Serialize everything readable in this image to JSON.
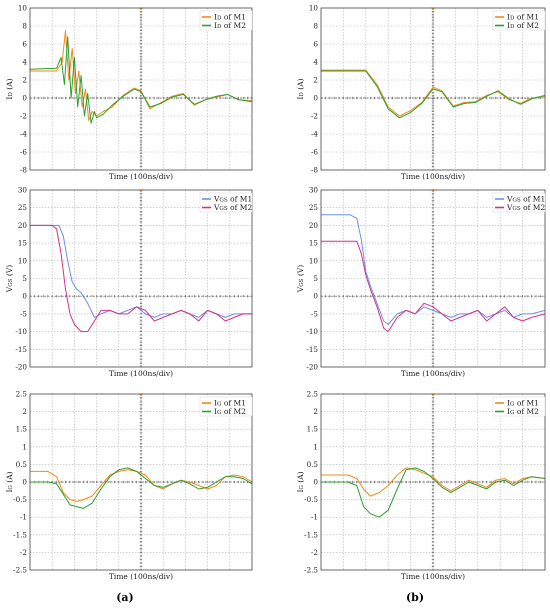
{
  "figure": {
    "captions": [
      "(a)",
      "(b)"
    ]
  },
  "colors": {
    "orange": "#f28a1c",
    "green": "#2f9e2f",
    "blue": "#6f8fe8",
    "magenta": "#d63384",
    "grid": "#b5b5b5",
    "frame": "#444444",
    "zero_line": "#555555"
  },
  "chart_data": [
    {
      "id": "a-id",
      "type": "line",
      "panel": "(a)",
      "xlabel": "Time (100ns/div)",
      "ylabel": "ID (A)",
      "ylim": [
        -8,
        10
      ],
      "yticks": [
        10,
        8,
        6,
        4,
        2,
        0,
        -2,
        -4,
        -6,
        -8
      ],
      "xlim": [
        0,
        10
      ],
      "grid": true,
      "legend": "top-right",
      "series": [
        {
          "name": "ID of M1",
          "color": "orange",
          "x": [
            0,
            1.2,
            1.45,
            1.6,
            1.75,
            1.9,
            2.05,
            2.2,
            2.35,
            2.5,
            2.65,
            2.8,
            3.0,
            3.3,
            3.7,
            4.2,
            4.7,
            5.0,
            5.4,
            5.9,
            6.4,
            6.9,
            7.4,
            7.9,
            8.4,
            8.9,
            9.4,
            10
          ],
          "y": [
            3.0,
            3.0,
            4.0,
            7.5,
            2.0,
            5.5,
            0.5,
            3.0,
            -1.0,
            1.0,
            -2.5,
            -1.5,
            -2.0,
            -1.5,
            -1.0,
            0.3,
            1.1,
            0.8,
            -1.2,
            -0.5,
            0.2,
            0.5,
            -0.8,
            -0.2,
            0.1,
            0.4,
            -0.2,
            -0.3
          ]
        },
        {
          "name": "ID of M2",
          "color": "green",
          "x": [
            0,
            1.2,
            1.4,
            1.55,
            1.7,
            1.85,
            2.0,
            2.15,
            2.3,
            2.45,
            2.6,
            2.75,
            2.9,
            3.0,
            3.3,
            3.7,
            4.2,
            4.7,
            5.0,
            5.4,
            5.9,
            6.4,
            6.9,
            7.4,
            7.9,
            8.4,
            8.9,
            9.4,
            10
          ],
          "y": [
            3.2,
            3.3,
            4.5,
            1.5,
            6.8,
            0.0,
            4.5,
            -1.0,
            2.5,
            -2.0,
            0.5,
            -2.8,
            -1.5,
            -2.2,
            -1.8,
            -0.8,
            0.2,
            1.0,
            0.7,
            -1.0,
            -0.6,
            0.1,
            0.4,
            -0.7,
            -0.2,
            0.2,
            0.4,
            -0.2,
            -0.4
          ]
        }
      ]
    },
    {
      "id": "b-id",
      "type": "line",
      "panel": "(b)",
      "xlabel": "Time (100ns/div)",
      "ylabel": "ID (A)",
      "ylim": [
        -8,
        10
      ],
      "yticks": [
        10,
        8,
        6,
        4,
        2,
        0,
        -2,
        -4,
        -6,
        -8
      ],
      "xlim": [
        0,
        10
      ],
      "grid": true,
      "legend": "top-right",
      "series": [
        {
          "name": "ID of M1",
          "color": "orange",
          "x": [
            0,
            1.5,
            2.0,
            2.5,
            3.0,
            3.5,
            4.0,
            4.5,
            5.0,
            5.4,
            5.9,
            6.4,
            6.9,
            7.4,
            7.9,
            8.4,
            8.9,
            9.4,
            10
          ],
          "y": [
            3.1,
            3.1,
            3.1,
            1.5,
            -1.0,
            -2.0,
            -1.4,
            -0.5,
            1.2,
            0.8,
            -0.9,
            -0.5,
            -0.4,
            0.3,
            0.7,
            -0.2,
            -0.6,
            0.0,
            0.2
          ]
        },
        {
          "name": "ID of M2",
          "color": "green",
          "x": [
            0,
            1.5,
            2.0,
            2.5,
            3.0,
            3.5,
            4.0,
            4.5,
            5.0,
            5.4,
            5.9,
            6.4,
            6.9,
            7.4,
            7.9,
            8.4,
            8.9,
            9.4,
            10
          ],
          "y": [
            3.0,
            3.0,
            3.0,
            1.3,
            -1.2,
            -2.2,
            -1.6,
            -0.6,
            1.0,
            0.7,
            -1.0,
            -0.6,
            -0.5,
            0.2,
            0.8,
            -0.1,
            -0.7,
            -0.1,
            0.3
          ]
        }
      ]
    },
    {
      "id": "a-vgs",
      "type": "line",
      "panel": "(a)",
      "xlabel": "Time (100ns/div)",
      "ylabel": "VGS (V)",
      "ylim": [
        -20,
        30
      ],
      "yticks": [
        30,
        25,
        20,
        15,
        10,
        5,
        0,
        -5,
        -10,
        -15,
        -20
      ],
      "xlim": [
        0,
        10
      ],
      "grid": true,
      "legend": "top-right",
      "series": [
        {
          "name": "VGS of M1",
          "color": "blue",
          "x": [
            0,
            1.0,
            1.3,
            1.5,
            1.7,
            1.9,
            2.1,
            2.3,
            2.6,
            2.9,
            3.2,
            3.6,
            4.0,
            4.4,
            4.8,
            5.2,
            5.6,
            6.0,
            6.4,
            6.8,
            7.2,
            7.6,
            8.0,
            8.4,
            8.8,
            9.2,
            9.6,
            10
          ],
          "y": [
            20,
            20,
            20,
            17,
            10,
            4,
            2,
            1,
            -2,
            -6,
            -5,
            -4,
            -5,
            -4,
            -3,
            -5,
            -6,
            -5,
            -5,
            -4,
            -5,
            -6,
            -4,
            -5,
            -6,
            -5,
            -5,
            -5
          ]
        },
        {
          "name": "VGS of M2",
          "color": "magenta",
          "x": [
            0,
            1.0,
            1.2,
            1.4,
            1.6,
            1.8,
            2.0,
            2.3,
            2.6,
            2.9,
            3.2,
            3.6,
            4.0,
            4.4,
            4.8,
            5.2,
            5.6,
            6.0,
            6.4,
            6.8,
            7.2,
            7.6,
            8.0,
            8.4,
            8.8,
            9.2,
            9.6,
            10
          ],
          "y": [
            20,
            20,
            19,
            12,
            2,
            -5,
            -8,
            -10,
            -10,
            -7,
            -4,
            -4,
            -5,
            -5,
            -3,
            -4,
            -7,
            -6,
            -5,
            -4,
            -5,
            -7,
            -4,
            -5,
            -7,
            -6,
            -5,
            -5
          ]
        }
      ]
    },
    {
      "id": "b-vgs",
      "type": "line",
      "panel": "(b)",
      "xlabel": "Time (100ns/div)",
      "ylabel": "VGS (V)",
      "ylim": [
        -20,
        30
      ],
      "yticks": [
        30,
        25,
        20,
        15,
        10,
        5,
        0,
        -5,
        -10,
        -15,
        -20
      ],
      "xlim": [
        0,
        10
      ],
      "grid": true,
      "legend": "top-right",
      "series": [
        {
          "name": "VGS of M1",
          "color": "blue",
          "x": [
            0,
            1.3,
            1.6,
            1.8,
            2.0,
            2.2,
            2.5,
            2.8,
            3.0,
            3.4,
            3.8,
            4.2,
            4.6,
            5.0,
            5.4,
            5.8,
            6.2,
            6.6,
            7.0,
            7.4,
            7.8,
            8.2,
            8.6,
            9.0,
            9.4,
            10
          ],
          "y": [
            23,
            23,
            22,
            16,
            7,
            3,
            -2,
            -7,
            -8,
            -5,
            -4,
            -5,
            -3,
            -4,
            -5,
            -6,
            -5,
            -5,
            -4,
            -6,
            -5,
            -4,
            -6,
            -5,
            -5,
            -4
          ]
        },
        {
          "name": "VGS of M2",
          "color": "magenta",
          "x": [
            0,
            1.3,
            1.6,
            1.8,
            2.0,
            2.2,
            2.5,
            2.8,
            3.0,
            3.4,
            3.8,
            4.2,
            4.6,
            5.0,
            5.4,
            5.8,
            6.2,
            6.6,
            7.0,
            7.4,
            7.8,
            8.2,
            8.6,
            9.0,
            9.4,
            10
          ],
          "y": [
            15.5,
            15.5,
            15.5,
            12,
            6,
            2,
            -3,
            -9,
            -10,
            -6,
            -4,
            -5,
            -2,
            -3,
            -5,
            -7,
            -6,
            -5,
            -4,
            -7,
            -5,
            -3,
            -6,
            -7,
            -6,
            -5
          ]
        }
      ]
    },
    {
      "id": "a-ig",
      "type": "line",
      "panel": "(a)",
      "xlabel": "Time (100ns/div)",
      "ylabel": "IG (A)",
      "ylim": [
        -2.5,
        2.5
      ],
      "yticks": [
        2.5,
        2,
        1.5,
        1,
        0.5,
        0,
        -0.5,
        -1,
        -1.5,
        -2,
        -2.5
      ],
      "xlim": [
        0,
        10
      ],
      "grid": true,
      "legend": "top-right",
      "series": [
        {
          "name": "IG of M1",
          "color": "orange",
          "x": [
            0,
            0.8,
            1.2,
            1.5,
            1.8,
            2.1,
            2.4,
            2.8,
            3.2,
            3.6,
            4.0,
            4.4,
            4.8,
            5.2,
            5.6,
            6.0,
            6.4,
            6.8,
            7.2,
            7.6,
            8.0,
            8.4,
            8.8,
            9.2,
            9.6,
            10
          ],
          "y": [
            0.3,
            0.3,
            0.15,
            -0.3,
            -0.5,
            -0.55,
            -0.5,
            -0.4,
            -0.1,
            0.2,
            0.3,
            0.35,
            0.3,
            0.2,
            -0.1,
            -0.2,
            -0.05,
            0.05,
            0.0,
            -0.1,
            -0.2,
            -0.1,
            0.15,
            0.2,
            0.15,
            0.0
          ]
        },
        {
          "name": "IG of M2",
          "color": "green",
          "x": [
            0,
            0.8,
            1.2,
            1.5,
            1.8,
            2.1,
            2.4,
            2.8,
            3.2,
            3.6,
            4.0,
            4.4,
            4.8,
            5.2,
            5.6,
            6.0,
            6.4,
            6.8,
            7.2,
            7.6,
            8.0,
            8.4,
            8.8,
            9.2,
            9.6,
            10
          ],
          "y": [
            0.0,
            0.0,
            -0.05,
            -0.35,
            -0.65,
            -0.7,
            -0.75,
            -0.6,
            -0.2,
            0.15,
            0.35,
            0.4,
            0.3,
            0.1,
            -0.1,
            -0.15,
            -0.05,
            0.05,
            -0.05,
            -0.2,
            -0.15,
            0.0,
            0.15,
            0.15,
            0.1,
            -0.05
          ]
        }
      ]
    },
    {
      "id": "b-ig",
      "type": "line",
      "panel": "(b)",
      "xlabel": "Time (100ns/div)",
      "ylabel": "IG (A)",
      "ylim": [
        -2.5,
        2.5
      ],
      "yticks": [
        2.5,
        2,
        1.5,
        1,
        0.5,
        0,
        -0.5,
        -1,
        -1.5,
        -2,
        -2.5
      ],
      "xlim": [
        0,
        10
      ],
      "grid": true,
      "legend": "top-right",
      "series": [
        {
          "name": "IG of M1",
          "color": "orange",
          "x": [
            0,
            1.2,
            1.6,
            1.9,
            2.2,
            2.6,
            3.0,
            3.4,
            3.8,
            4.2,
            4.6,
            5.0,
            5.4,
            5.8,
            6.2,
            6.6,
            7.0,
            7.4,
            7.8,
            8.2,
            8.6,
            9.0,
            9.4,
            10
          ],
          "y": [
            0.2,
            0.2,
            0.1,
            -0.2,
            -0.4,
            -0.3,
            -0.1,
            0.2,
            0.4,
            0.35,
            0.25,
            0.15,
            -0.1,
            -0.25,
            -0.1,
            0.05,
            -0.05,
            -0.15,
            0.05,
            0.1,
            -0.05,
            0.1,
            0.15,
            0.1
          ]
        },
        {
          "name": "IG of M2",
          "color": "green",
          "x": [
            0,
            1.2,
            1.6,
            1.9,
            2.2,
            2.6,
            3.0,
            3.4,
            3.8,
            4.2,
            4.6,
            5.0,
            5.4,
            5.8,
            6.2,
            6.6,
            7.0,
            7.4,
            7.8,
            8.2,
            8.6,
            9.0,
            9.4,
            10
          ],
          "y": [
            0.0,
            0.0,
            -0.1,
            -0.7,
            -0.9,
            -1.0,
            -0.8,
            -0.2,
            0.35,
            0.4,
            0.3,
            0.1,
            -0.15,
            -0.3,
            -0.15,
            0.0,
            -0.1,
            -0.2,
            0.0,
            0.05,
            -0.1,
            0.05,
            0.15,
            0.1
          ]
        }
      ]
    }
  ]
}
